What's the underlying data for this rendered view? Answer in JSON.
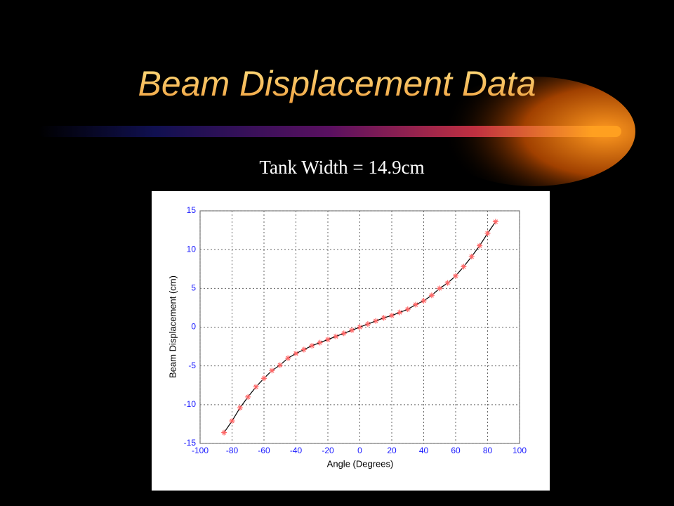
{
  "chart_data": {
    "type": "line",
    "title": "Beam Displacement Data",
    "subtitle": "Tank Width = 14.9cm",
    "x_label": "Angle (Degrees)",
    "y_label": "Beam Displacement (cm)",
    "x": [
      -85,
      -80,
      -75,
      -70,
      -65,
      -60,
      -55,
      -50,
      -45,
      -40,
      -35,
      -30,
      -25,
      -20,
      -15,
      -10,
      -5,
      0,
      5,
      10,
      15,
      20,
      25,
      30,
      35,
      40,
      45,
      50,
      55,
      60,
      65,
      70,
      75,
      80,
      85
    ],
    "series": [
      {
        "name": "Beam Displacement",
        "color": "#ff6666",
        "line_color": "#000000",
        "values": [
          -13.6,
          -12.1,
          -10.4,
          -9.0,
          -7.7,
          -6.6,
          -5.6,
          -4.9,
          -4.0,
          -3.4,
          -2.9,
          -2.4,
          -2.0,
          -1.6,
          -1.2,
          -0.8,
          -0.4,
          0,
          0.4,
          0.8,
          1.2,
          1.5,
          1.9,
          2.3,
          2.9,
          3.4,
          4.1,
          5.0,
          5.7,
          6.6,
          7.8,
          9.1,
          10.5,
          12.1,
          13.6
        ]
      }
    ],
    "xlim": [
      -100,
      100
    ],
    "xticks": [
      -100,
      -80,
      -60,
      -40,
      -20,
      0,
      20,
      40,
      60,
      80,
      100
    ],
    "ylim": [
      -15,
      15
    ],
    "yticks": [
      -15,
      -10,
      -5,
      0,
      5,
      10,
      15
    ],
    "grid": true,
    "tick_color": "#1a1aff"
  }
}
